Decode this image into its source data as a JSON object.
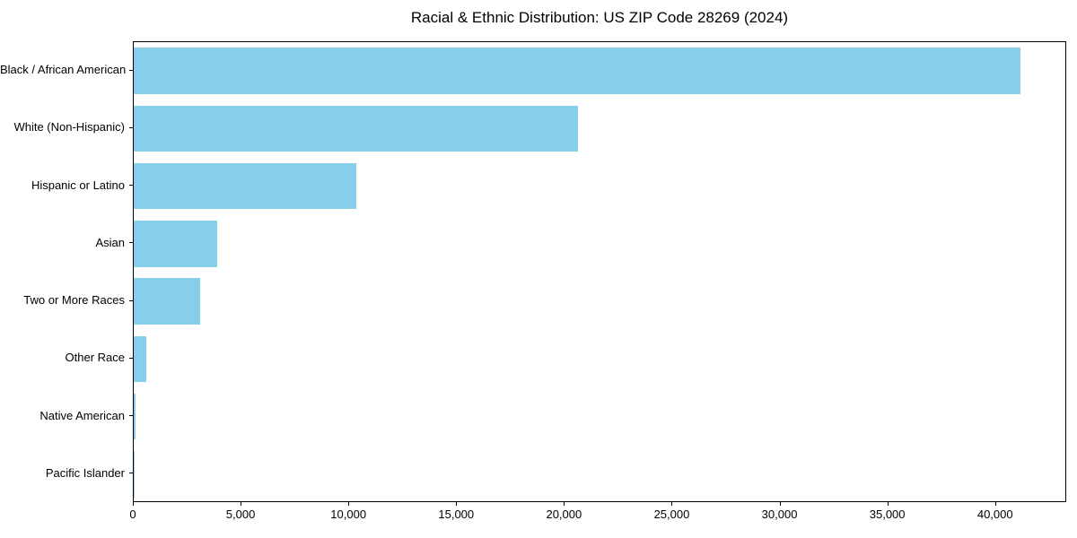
{
  "page": {
    "background_color": "#ffffff",
    "text_color": "#000000"
  },
  "chart_data": {
    "type": "bar",
    "orientation": "horizontal",
    "title": "Racial & Ethnic Distribution: US ZIP Code 28269 (2024)",
    "categories": [
      "Black / African American",
      "White (Non-Hispanic)",
      "Hispanic or Latino",
      "Asian",
      "Two or More Races",
      "Other Race",
      "Native American",
      "Pacific Islander"
    ],
    "values": [
      41200,
      20650,
      10350,
      3900,
      3080,
      570,
      100,
      30
    ],
    "bar_color": "#87CEEB",
    "xlabel": "",
    "ylabel": "",
    "xlim": [
      0,
      43300
    ],
    "x_ticks": [
      0,
      5000,
      10000,
      15000,
      20000,
      25000,
      30000,
      35000,
      40000
    ],
    "x_tick_labels": [
      "0",
      "5,000",
      "10,000",
      "15,000",
      "20,000",
      "25,000",
      "30,000",
      "35,000",
      "40,000"
    ],
    "grid": false,
    "legend": "none"
  }
}
